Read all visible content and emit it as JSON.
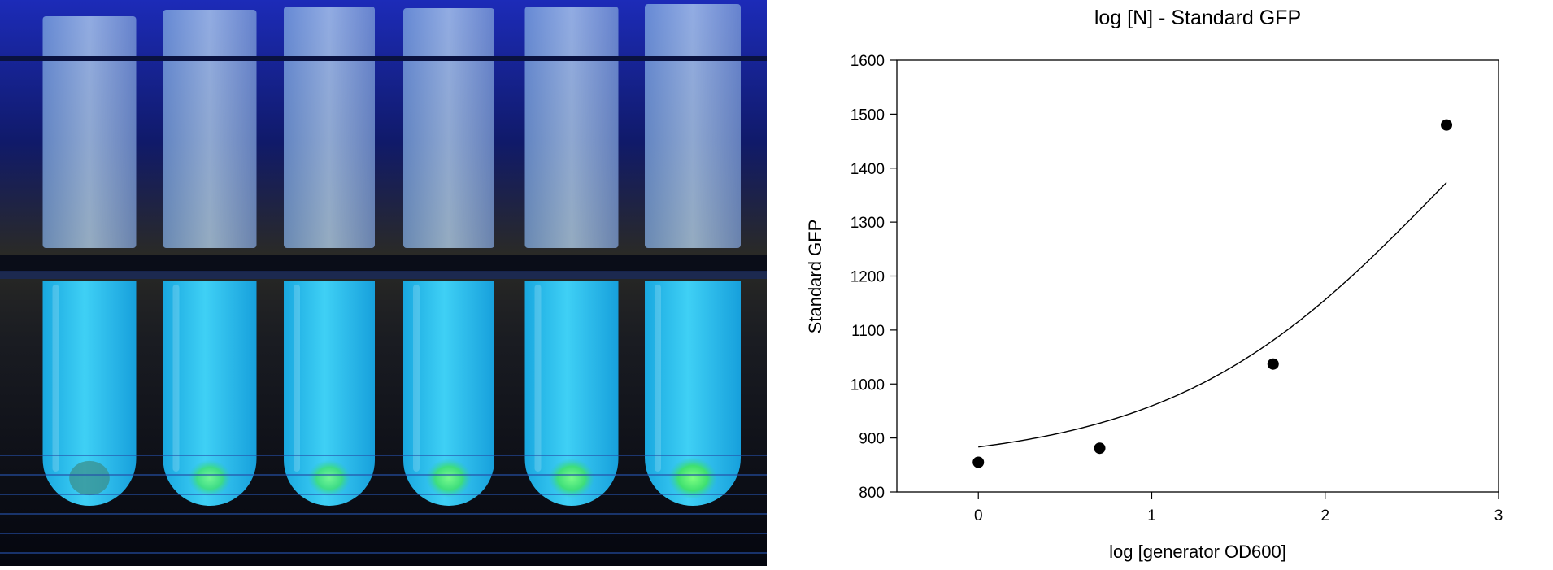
{
  "photo": {
    "subject": "fluorescent-culture-tubes",
    "tube_count": 6,
    "colors": {
      "background": "#0b1430",
      "backlight": "#1f2fd0",
      "tube_glow": "#22c3f0",
      "tube_top": "#9ec8ee",
      "pellet": "#3ff07a",
      "rack": "#0a0d18"
    }
  },
  "chart_data": {
    "type": "scatter",
    "title": "log [N] - Standard GFP",
    "xlabel": "log [generator OD600]",
    "ylabel": "Standard GFP",
    "xlim": [
      -0.47,
      3
    ],
    "ylim": [
      800,
      1600
    ],
    "x_ticks": [
      "0",
      "1",
      "2",
      "3"
    ],
    "y_ticks": [
      "800",
      "900",
      "1000",
      "1100",
      "1200",
      "1300",
      "1400",
      "1500",
      "1600"
    ],
    "points": [
      {
        "x": 0,
        "y": 855
      },
      {
        "x": 0.7,
        "y": 881
      },
      {
        "x": 1.7,
        "y": 1037
      },
      {
        "x": 2.7,
        "y": 1480
      }
    ],
    "fit_curve": {
      "shape": "sigmoid",
      "bottom": 850,
      "top": 1890,
      "x50": 2.69,
      "slope": 0.55
    },
    "grid": false,
    "legend": "none",
    "colors": {
      "marker": "#000000",
      "line": "#000000",
      "axes": "#000000"
    }
  }
}
